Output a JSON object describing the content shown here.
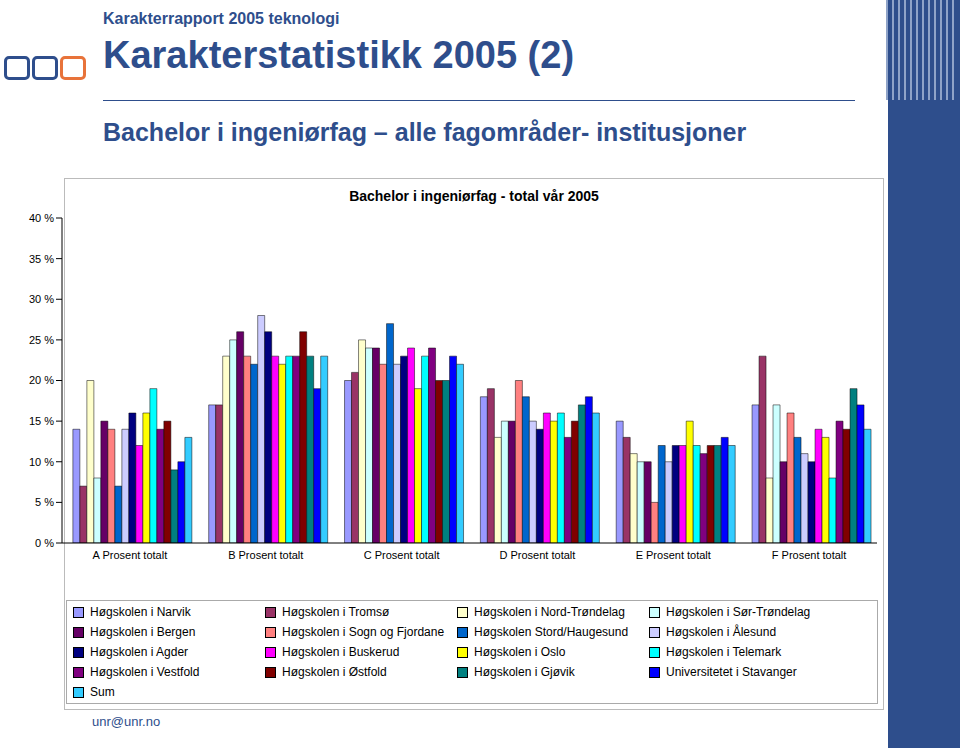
{
  "header": {
    "report": "Karakterrapport 2005 teknologi",
    "title": "Karakterstatistikk 2005 (2)",
    "subtitle": "Bachelor i ingeniørfag – alle fagområder- institusjoner"
  },
  "footer": "unr@unr.no",
  "chart_data": {
    "type": "bar",
    "title": "Bachelor i ingeniørfag - total vår 2005",
    "categories": [
      "A   Prosent totalt",
      "B   Prosent totalt",
      "C   Prosent totalt",
      "D   Prosent totalt",
      "E   Prosent totalt",
      "F   Prosent totalt"
    ],
    "series": [
      {
        "name": "Høgskolen i Narvik",
        "color": "#9999ff",
        "values": [
          14,
          17,
          20,
          18,
          15,
          17
        ]
      },
      {
        "name": "Høgskolen i Tromsø",
        "color": "#993366",
        "values": [
          7,
          17,
          21,
          19,
          13,
          23
        ]
      },
      {
        "name": "Høgskolen i Nord-Trøndelag",
        "color": "#ffffcc",
        "values": [
          20,
          23,
          25,
          13,
          11,
          8
        ]
      },
      {
        "name": "Høgskolen i Sør-Trøndelag",
        "color": "#ccffff",
        "values": [
          8,
          25,
          24,
          15,
          10,
          17
        ]
      },
      {
        "name": "Høgskolen i Bergen",
        "color": "#660066",
        "values": [
          15,
          26,
          24,
          15,
          10,
          10
        ]
      },
      {
        "name": "Høgskolen i Sogn og Fjordane",
        "color": "#ff8080",
        "values": [
          14,
          23,
          22,
          20,
          5,
          16
        ]
      },
      {
        "name": "Høgskolen Stord/Haugesund",
        "color": "#0066cc",
        "values": [
          7,
          22,
          27,
          18,
          12,
          13
        ]
      },
      {
        "name": "Høgskolen i Ålesund",
        "color": "#ccccff",
        "values": [
          14,
          28,
          22,
          15,
          10,
          11
        ]
      },
      {
        "name": "Høgskolen i Agder",
        "color": "#000080",
        "values": [
          16,
          26,
          23,
          14,
          12,
          10
        ]
      },
      {
        "name": "Høgskolen i Buskerud",
        "color": "#ff00ff",
        "values": [
          12,
          23,
          24,
          16,
          12,
          14
        ]
      },
      {
        "name": "Høgskolen i Oslo",
        "color": "#ffff00",
        "values": [
          16,
          22,
          19,
          15,
          15,
          13
        ]
      },
      {
        "name": "Høgskolen i Telemark",
        "color": "#00ffff",
        "values": [
          19,
          23,
          23,
          16,
          12,
          8
        ]
      },
      {
        "name": "Høgskolen i Vestfold",
        "color": "#800080",
        "values": [
          14,
          23,
          24,
          13,
          11,
          15
        ]
      },
      {
        "name": "Høgskolen i Østfold",
        "color": "#800000",
        "values": [
          15,
          26,
          20,
          15,
          12,
          14
        ]
      },
      {
        "name": "Høgskolen i Gjøvik",
        "color": "#008080",
        "values": [
          9,
          23,
          20,
          17,
          12,
          19
        ]
      },
      {
        "name": "Universitetet i Stavanger",
        "color": "#0000ff",
        "values": [
          10,
          19,
          23,
          18,
          13,
          17
        ]
      },
      {
        "name": "Sum",
        "color": "#33ccff",
        "values": [
          13,
          23,
          22,
          16,
          12,
          14
        ]
      }
    ],
    "ylim": [
      0,
      40
    ],
    "yticks": [
      {
        "value": 0,
        "label": "0 %"
      },
      {
        "value": 5,
        "label": "5 %"
      },
      {
        "value": 10,
        "label": "10 %"
      },
      {
        "value": 15,
        "label": "15 %"
      },
      {
        "value": 20,
        "label": "20 %"
      },
      {
        "value": 25,
        "label": "25 %"
      },
      {
        "value": 30,
        "label": "30 %"
      },
      {
        "value": 35,
        "label": "35 %"
      },
      {
        "value": 40,
        "label": "40 %"
      }
    ],
    "grid": false,
    "legend": "bottom"
  }
}
